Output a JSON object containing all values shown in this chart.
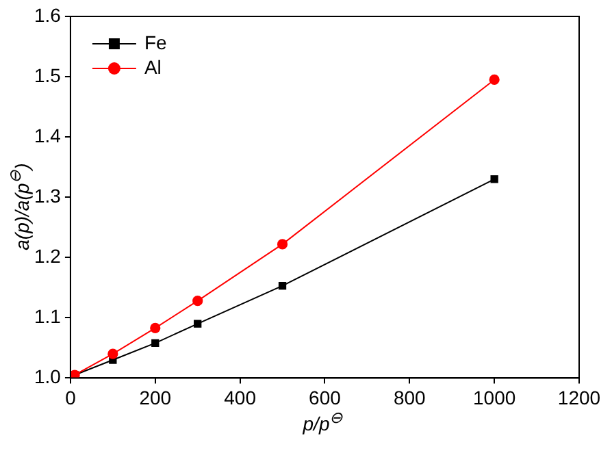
{
  "chart_data": {
    "type": "line",
    "xlabel": "p/p$^{⊖}$",
    "ylabel": "a(p)/a(p$^{⊖}$)",
    "x": [
      10,
      100,
      200,
      300,
      500,
      1000
    ],
    "series": [
      {
        "name": "Fe",
        "color": "#000000",
        "marker": "square",
        "values": [
          1.005,
          1.03,
          1.058,
          1.09,
          1.153,
          1.33
        ]
      },
      {
        "name": "Al",
        "color": "#ff0000",
        "marker": "circle",
        "values": [
          1.005,
          1.04,
          1.083,
          1.128,
          1.222,
          1.495
        ]
      }
    ],
    "xlim": [
      0,
      1200
    ],
    "xticks": [
      0,
      200,
      400,
      600,
      800,
      1000,
      1200
    ],
    "ylim": [
      1.0,
      1.6
    ],
    "yticks": [
      {
        "value": 1.0,
        "label": "1.0"
      },
      1.1,
      1.2,
      1.3,
      1.4,
      1.5,
      1.6
    ],
    "grid": false,
    "legend": "top left"
  }
}
